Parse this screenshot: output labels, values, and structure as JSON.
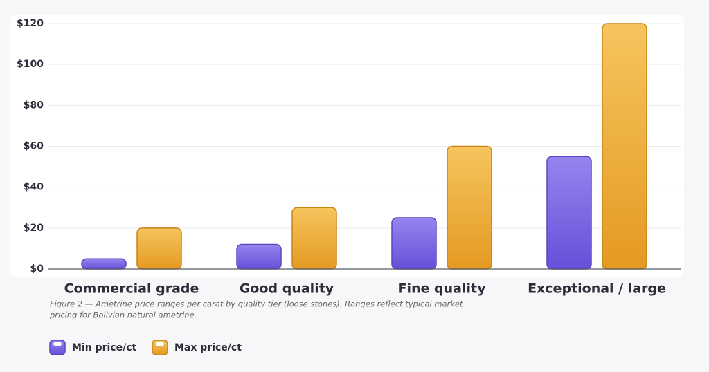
{
  "chart_data": {
    "type": "bar",
    "categories": [
      "Commercial grade",
      "Good quality",
      "Fine quality",
      "Exceptional / large"
    ],
    "series": [
      {
        "name": "Min price/ct",
        "color": "#7461e0",
        "values": [
          5,
          12,
          25,
          55
        ]
      },
      {
        "name": "Max price/ct",
        "color": "#eea935",
        "values": [
          20,
          30,
          60,
          120
        ]
      }
    ],
    "ylim": [
      0,
      120
    ],
    "yticks": [
      {
        "value": 0,
        "label": "$0"
      },
      {
        "value": 20,
        "label": "$20"
      },
      {
        "value": 40,
        "label": "$40"
      },
      {
        "value": 60,
        "label": "$60"
      },
      {
        "value": 80,
        "label": "$80"
      },
      {
        "value": 100,
        "label": "$100"
      },
      {
        "value": 120,
        "label": "$120"
      }
    ],
    "grid": true,
    "caption": [
      "Figure 2 — Ametrine price ranges per carat by quality tier (loose stones). Ranges reflect typical market",
      "pricing for Bolivian natural ametrine."
    ],
    "legend": "bottom-left"
  }
}
